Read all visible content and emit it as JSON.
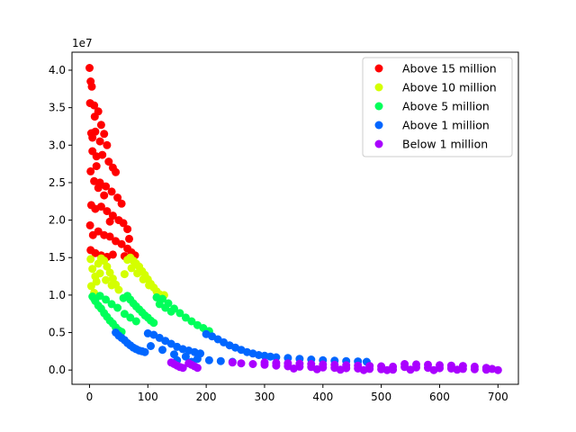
{
  "chart_data": {
    "type": "scatter",
    "title": "",
    "xlabel": "",
    "ylabel": "",
    "y_offset_label": "1e7",
    "xlim": [
      -30,
      735
    ],
    "ylim": [
      -1900000,
      42400000
    ],
    "x_ticks": [
      0,
      100,
      200,
      300,
      400,
      500,
      600,
      700
    ],
    "y_ticks": [
      0,
      5000000,
      10000000,
      15000000,
      20000000,
      25000000,
      30000000,
      35000000,
      40000000
    ],
    "y_tick_labels": [
      "0.0",
      "0.5",
      "1.0",
      "1.5",
      "2.0",
      "2.5",
      "3.0",
      "3.5",
      "4.0"
    ],
    "grid": false,
    "legend_position": "top-right",
    "series": [
      {
        "name": "Above 15 million",
        "color": "#ff0000",
        "points": [
          [
            0,
            40300000
          ],
          [
            2,
            38500000
          ],
          [
            4,
            37800000
          ],
          [
            1,
            35600000
          ],
          [
            8,
            35300000
          ],
          [
            15,
            34500000
          ],
          [
            3,
            31600000
          ],
          [
            10,
            31800000
          ],
          [
            20,
            32700000
          ],
          [
            25,
            31500000
          ],
          [
            30,
            30000000
          ],
          [
            5,
            29200000
          ],
          [
            12,
            28500000
          ],
          [
            22,
            28700000
          ],
          [
            33,
            27800000
          ],
          [
            40,
            27000000
          ],
          [
            45,
            26400000
          ],
          [
            2,
            26500000
          ],
          [
            8,
            25200000
          ],
          [
            18,
            25000000
          ],
          [
            28,
            24500000
          ],
          [
            38,
            23800000
          ],
          [
            48,
            23000000
          ],
          [
            55,
            22200000
          ],
          [
            3,
            22000000
          ],
          [
            10,
            21500000
          ],
          [
            20,
            21800000
          ],
          [
            30,
            21200000
          ],
          [
            40,
            20600000
          ],
          [
            50,
            20000000
          ],
          [
            58,
            19600000
          ],
          [
            65,
            18800000
          ],
          [
            1,
            19300000
          ],
          [
            6,
            18000000
          ],
          [
            15,
            18500000
          ],
          [
            25,
            18000000
          ],
          [
            35,
            17800000
          ],
          [
            45,
            17200000
          ],
          [
            55,
            16800000
          ],
          [
            65,
            16200000
          ],
          [
            72,
            15700000
          ],
          [
            78,
            15300000
          ],
          [
            2,
            16000000
          ],
          [
            10,
            15600000
          ],
          [
            20,
            15300000
          ],
          [
            30,
            15100000
          ],
          [
            40,
            15400000
          ],
          [
            60,
            15200000
          ],
          [
            68,
            17500000
          ],
          [
            35,
            19800000
          ],
          [
            25,
            23300000
          ],
          [
            15,
            24300000
          ],
          [
            12,
            27200000
          ],
          [
            5,
            31000000
          ],
          [
            9,
            33800000
          ],
          [
            18,
            30500000
          ]
        ]
      },
      {
        "name": "Above 10 million",
        "color": "#d4ff00",
        "points": [
          [
            2,
            14800000
          ],
          [
            5,
            13500000
          ],
          [
            10,
            12500000
          ],
          [
            15,
            14200000
          ],
          [
            20,
            14900000
          ],
          [
            25,
            14600000
          ],
          [
            30,
            13800000
          ],
          [
            35,
            13000000
          ],
          [
            40,
            12200000
          ],
          [
            45,
            11400000
          ],
          [
            50,
            10700000
          ],
          [
            3,
            11200000
          ],
          [
            8,
            10300000
          ],
          [
            12,
            11800000
          ],
          [
            18,
            12900000
          ],
          [
            28,
            12000000
          ],
          [
            38,
            11300000
          ],
          [
            60,
            12800000
          ],
          [
            65,
            14700000
          ],
          [
            70,
            15000000
          ],
          [
            75,
            14600000
          ],
          [
            80,
            14200000
          ],
          [
            85,
            13800000
          ],
          [
            90,
            13200000
          ],
          [
            95,
            12700000
          ],
          [
            100,
            12100000
          ],
          [
            105,
            11500000
          ],
          [
            110,
            11000000
          ],
          [
            115,
            10500000
          ],
          [
            120,
            10100000
          ],
          [
            128,
            10000000
          ],
          [
            72,
            13600000
          ],
          [
            82,
            12900000
          ],
          [
            92,
            12100000
          ],
          [
            102,
            11300000
          ]
        ]
      },
      {
        "name": "Above 5 million",
        "color": "#00ff5a",
        "points": [
          [
            5,
            9800000
          ],
          [
            10,
            9200000
          ],
          [
            15,
            8600000
          ],
          [
            20,
            8200000
          ],
          [
            25,
            7600000
          ],
          [
            30,
            7100000
          ],
          [
            35,
            6600000
          ],
          [
            40,
            6200000
          ],
          [
            45,
            5700000
          ],
          [
            50,
            5300000
          ],
          [
            55,
            5100000
          ],
          [
            8,
            9500000
          ],
          [
            18,
            9900000
          ],
          [
            28,
            9400000
          ],
          [
            38,
            8800000
          ],
          [
            48,
            8300000
          ],
          [
            58,
            9600000
          ],
          [
            65,
            9900000
          ],
          [
            70,
            9400000
          ],
          [
            75,
            8900000
          ],
          [
            80,
            8500000
          ],
          [
            85,
            8100000
          ],
          [
            90,
            7700000
          ],
          [
            95,
            7300000
          ],
          [
            100,
            7000000
          ],
          [
            105,
            6600000
          ],
          [
            110,
            6300000
          ],
          [
            115,
            9700000
          ],
          [
            125,
            9500000
          ],
          [
            135,
            8900000
          ],
          [
            145,
            8200000
          ],
          [
            155,
            7600000
          ],
          [
            165,
            7000000
          ],
          [
            175,
            6500000
          ],
          [
            185,
            6000000
          ],
          [
            195,
            5600000
          ],
          [
            205,
            5200000
          ],
          [
            60,
            7500000
          ],
          [
            70,
            7000000
          ],
          [
            80,
            6500000
          ],
          [
            120,
            8800000
          ],
          [
            130,
            8300000
          ],
          [
            140,
            7800000
          ]
        ]
      },
      {
        "name": "Above 1 million",
        "color": "#0066ff",
        "points": [
          [
            45,
            5000000
          ],
          [
            50,
            4600000
          ],
          [
            55,
            4300000
          ],
          [
            60,
            4000000
          ],
          [
            65,
            3600000
          ],
          [
            70,
            3300000
          ],
          [
            75,
            3000000
          ],
          [
            80,
            2800000
          ],
          [
            85,
            2600000
          ],
          [
            90,
            2500000
          ],
          [
            95,
            2400000
          ],
          [
            100,
            4900000
          ],
          [
            110,
            4700000
          ],
          [
            120,
            4300000
          ],
          [
            130,
            3900000
          ],
          [
            140,
            3500000
          ],
          [
            150,
            3100000
          ],
          [
            160,
            2800000
          ],
          [
            170,
            2600000
          ],
          [
            180,
            2400000
          ],
          [
            190,
            2200000
          ],
          [
            200,
            4800000
          ],
          [
            210,
            4500000
          ],
          [
            220,
            4100000
          ],
          [
            230,
            3700000
          ],
          [
            240,
            3300000
          ],
          [
            250,
            3000000
          ],
          [
            260,
            2700000
          ],
          [
            270,
            2400000
          ],
          [
            280,
            2200000
          ],
          [
            290,
            2000000
          ],
          [
            300,
            1900000
          ],
          [
            310,
            1800000
          ],
          [
            320,
            1700000
          ],
          [
            340,
            1600000
          ],
          [
            360,
            1500000
          ],
          [
            380,
            1400000
          ],
          [
            400,
            1300000
          ],
          [
            420,
            1250000
          ],
          [
            440,
            1200000
          ],
          [
            460,
            1150000
          ],
          [
            475,
            1100000
          ],
          [
            105,
            3200000
          ],
          [
            125,
            2700000
          ],
          [
            145,
            2100000
          ],
          [
            165,
            1800000
          ],
          [
            185,
            1500000
          ],
          [
            205,
            1300000
          ],
          [
            225,
            1200000
          ],
          [
            245,
            1100000
          ],
          [
            150,
            1300000
          ],
          [
            175,
            1100000
          ]
        ]
      },
      {
        "name": "Below 1 million",
        "color": "#aa00ff",
        "points": [
          [
            140,
            1000000
          ],
          [
            145,
            800000
          ],
          [
            150,
            600000
          ],
          [
            155,
            400000
          ],
          [
            160,
            300000
          ],
          [
            170,
            900000
          ],
          [
            175,
            700000
          ],
          [
            180,
            500000
          ],
          [
            185,
            300000
          ],
          [
            245,
            1000000
          ],
          [
            260,
            900000
          ],
          [
            280,
            800000
          ],
          [
            300,
            700000
          ],
          [
            320,
            600000
          ],
          [
            340,
            500000
          ],
          [
            360,
            450000
          ],
          [
            380,
            400000
          ],
          [
            400,
            350000
          ],
          [
            420,
            300000
          ],
          [
            440,
            250000
          ],
          [
            460,
            200000
          ],
          [
            480,
            150000
          ],
          [
            500,
            100000
          ],
          [
            520,
            50000
          ],
          [
            300,
            1000000
          ],
          [
            320,
            950000
          ],
          [
            340,
            900000
          ],
          [
            360,
            850000
          ],
          [
            380,
            800000
          ],
          [
            400,
            750000
          ],
          [
            420,
            700000
          ],
          [
            440,
            650000
          ],
          [
            460,
            600000
          ],
          [
            480,
            550000
          ],
          [
            500,
            500000
          ],
          [
            520,
            450000
          ],
          [
            540,
            400000
          ],
          [
            560,
            350000
          ],
          [
            580,
            300000
          ],
          [
            600,
            250000
          ],
          [
            620,
            200000
          ],
          [
            640,
            150000
          ],
          [
            660,
            100000
          ],
          [
            680,
            50000
          ],
          [
            700,
            0
          ],
          [
            540,
            800000
          ],
          [
            560,
            750000
          ],
          [
            580,
            700000
          ],
          [
            600,
            650000
          ],
          [
            620,
            600000
          ],
          [
            640,
            550000
          ],
          [
            660,
            450000
          ],
          [
            680,
            300000
          ],
          [
            690,
            150000
          ],
          [
            350,
            200000
          ],
          [
            390,
            100000
          ],
          [
            430,
            50000
          ],
          [
            470,
            0
          ],
          [
            510,
            0
          ],
          [
            550,
            50000
          ],
          [
            590,
            0
          ],
          [
            630,
            50000
          ]
        ]
      }
    ]
  }
}
